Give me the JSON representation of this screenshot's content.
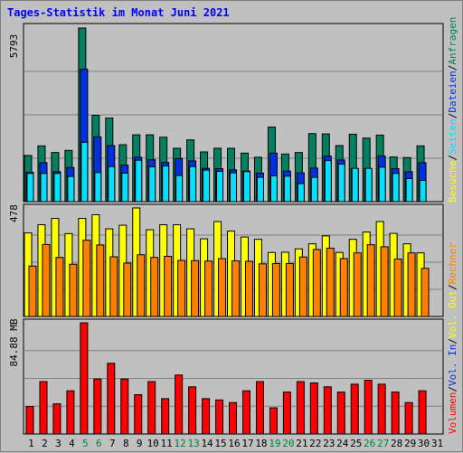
{
  "title": "Tages-Statistik im Monat Juni 2021",
  "colors": {
    "anfragen": "#008060",
    "dateien": "#0030e0",
    "seiten": "#00e0ff",
    "besuche": "#ffff00",
    "rechner": "#ff8000",
    "volumen": "#ff0000",
    "weekend_label": "#008040",
    "weekday_label": "#000000"
  },
  "legend_top": {
    "anfragen": "Anfragen",
    "sep1": "/",
    "dateien": "Dateien",
    "sep2": "/",
    "seiten": "Seiten",
    "sep3": "/",
    "besuche": "Besuche"
  },
  "legend_mid": {
    "rechner": "Rechner",
    "sep1": "/",
    "out": "Vol. Out",
    "sep2": "/",
    "in": "Vol. In",
    "sep3": "/",
    "volumen": "Volumen"
  },
  "chart_data": [
    {
      "type": "bar",
      "panel": "top",
      "max_label": "5793",
      "ylim": [
        0,
        5793
      ],
      "categories": [
        "1",
        "2",
        "3",
        "4",
        "5",
        "6",
        "7",
        "8",
        "9",
        "10",
        "11",
        "12",
        "13",
        "14",
        "15",
        "16",
        "17",
        "18",
        "19",
        "20",
        "21",
        "22",
        "23",
        "24",
        "25",
        "26",
        "27",
        "28",
        "29",
        "30"
      ],
      "weekend_days": [
        "5",
        "6",
        "12",
        "13",
        "19",
        "20",
        "26",
        "27"
      ],
      "series": [
        {
          "name": "Anfragen",
          "values": [
            1540,
            1860,
            1640,
            1710,
            5793,
            2880,
            2790,
            1900,
            2230,
            2230,
            2150,
            1780,
            2060,
            1660,
            1780,
            1780,
            1620,
            1480,
            2490,
            1590,
            1640,
            2270,
            2260,
            1870,
            2250,
            2120,
            2220,
            1490,
            1470,
            1860
          ]
        },
        {
          "name": "Dateien",
          "values": [
            980,
            1300,
            1000,
            1140,
            4420,
            2160,
            1870,
            1220,
            1480,
            1400,
            1310,
            1440,
            1360,
            1110,
            1100,
            1060,
            1020,
            950,
            1620,
            1020,
            960,
            1120,
            1520,
            1390,
            1100,
            1100,
            1520,
            1100,
            1000,
            1300
          ]
        },
        {
          "name": "Seiten",
          "values": [
            940,
            940,
            940,
            840,
            1980,
            970,
            1170,
            950,
            1380,
            1160,
            1190,
            870,
            1170,
            1050,
            1010,
            960,
            1000,
            810,
            860,
            850,
            600,
            810,
            1370,
            1250,
            1110,
            1110,
            1150,
            940,
            770,
            710
          ]
        }
      ]
    },
    {
      "type": "bar",
      "panel": "middle",
      "max_label": "478",
      "ylim": [
        0,
        478
      ],
      "categories": [
        "1",
        "2",
        "3",
        "4",
        "5",
        "6",
        "7",
        "8",
        "9",
        "10",
        "11",
        "12",
        "13",
        "14",
        "15",
        "16",
        "17",
        "18",
        "19",
        "20",
        "21",
        "22",
        "23",
        "24",
        "25",
        "26",
        "27",
        "28",
        "29",
        "30"
      ],
      "series": [
        {
          "name": "Besuche",
          "values": [
            368,
            404,
            432,
            365,
            432,
            448,
            386,
            402,
            478,
            382,
            404,
            404,
            386,
            342,
            418,
            376,
            350,
            340,
            282,
            283,
            298,
            320,
            355,
            282,
            340,
            372,
            418,
            366,
            320,
            280
          ]
        },
        {
          "name": "Rechner",
          "values": [
            222,
            317,
            260,
            230,
            336,
            315,
            263,
            235,
            272,
            260,
            265,
            247,
            246,
            244,
            255,
            245,
            243,
            232,
            233,
            233,
            262,
            295,
            301,
            255,
            280,
            316,
            307,
            253,
            280,
            212
          ]
        }
      ]
    },
    {
      "type": "bar",
      "panel": "bottom",
      "max_label": "84.88 MB",
      "ylim": [
        0,
        84.88
      ],
      "categories": [
        "1",
        "2",
        "3",
        "4",
        "5",
        "6",
        "7",
        "8",
        "9",
        "10",
        "11",
        "12",
        "13",
        "14",
        "15",
        "16",
        "17",
        "18",
        "19",
        "20",
        "21",
        "22",
        "23",
        "24",
        "25",
        "26",
        "27",
        "28",
        "29",
        "30"
      ],
      "series": [
        {
          "name": "Volumen",
          "values": [
            21,
            40,
            23,
            33,
            84.88,
            42,
            54,
            42,
            30,
            40,
            27,
            45,
            36,
            27,
            26,
            24,
            33,
            40,
            20,
            32,
            40,
            39,
            36,
            32,
            38,
            41,
            38,
            32,
            24,
            33
          ]
        }
      ]
    }
  ],
  "x_labels": [
    "1",
    "2",
    "3",
    "4",
    "5",
    "6",
    "7",
    "8",
    "9",
    "10",
    "11",
    "12",
    "13",
    "14",
    "15",
    "16",
    "17",
    "18",
    "19",
    "20",
    "21",
    "22",
    "23",
    "24",
    "25",
    "26",
    "27",
    "28",
    "29",
    "30",
    "31"
  ]
}
